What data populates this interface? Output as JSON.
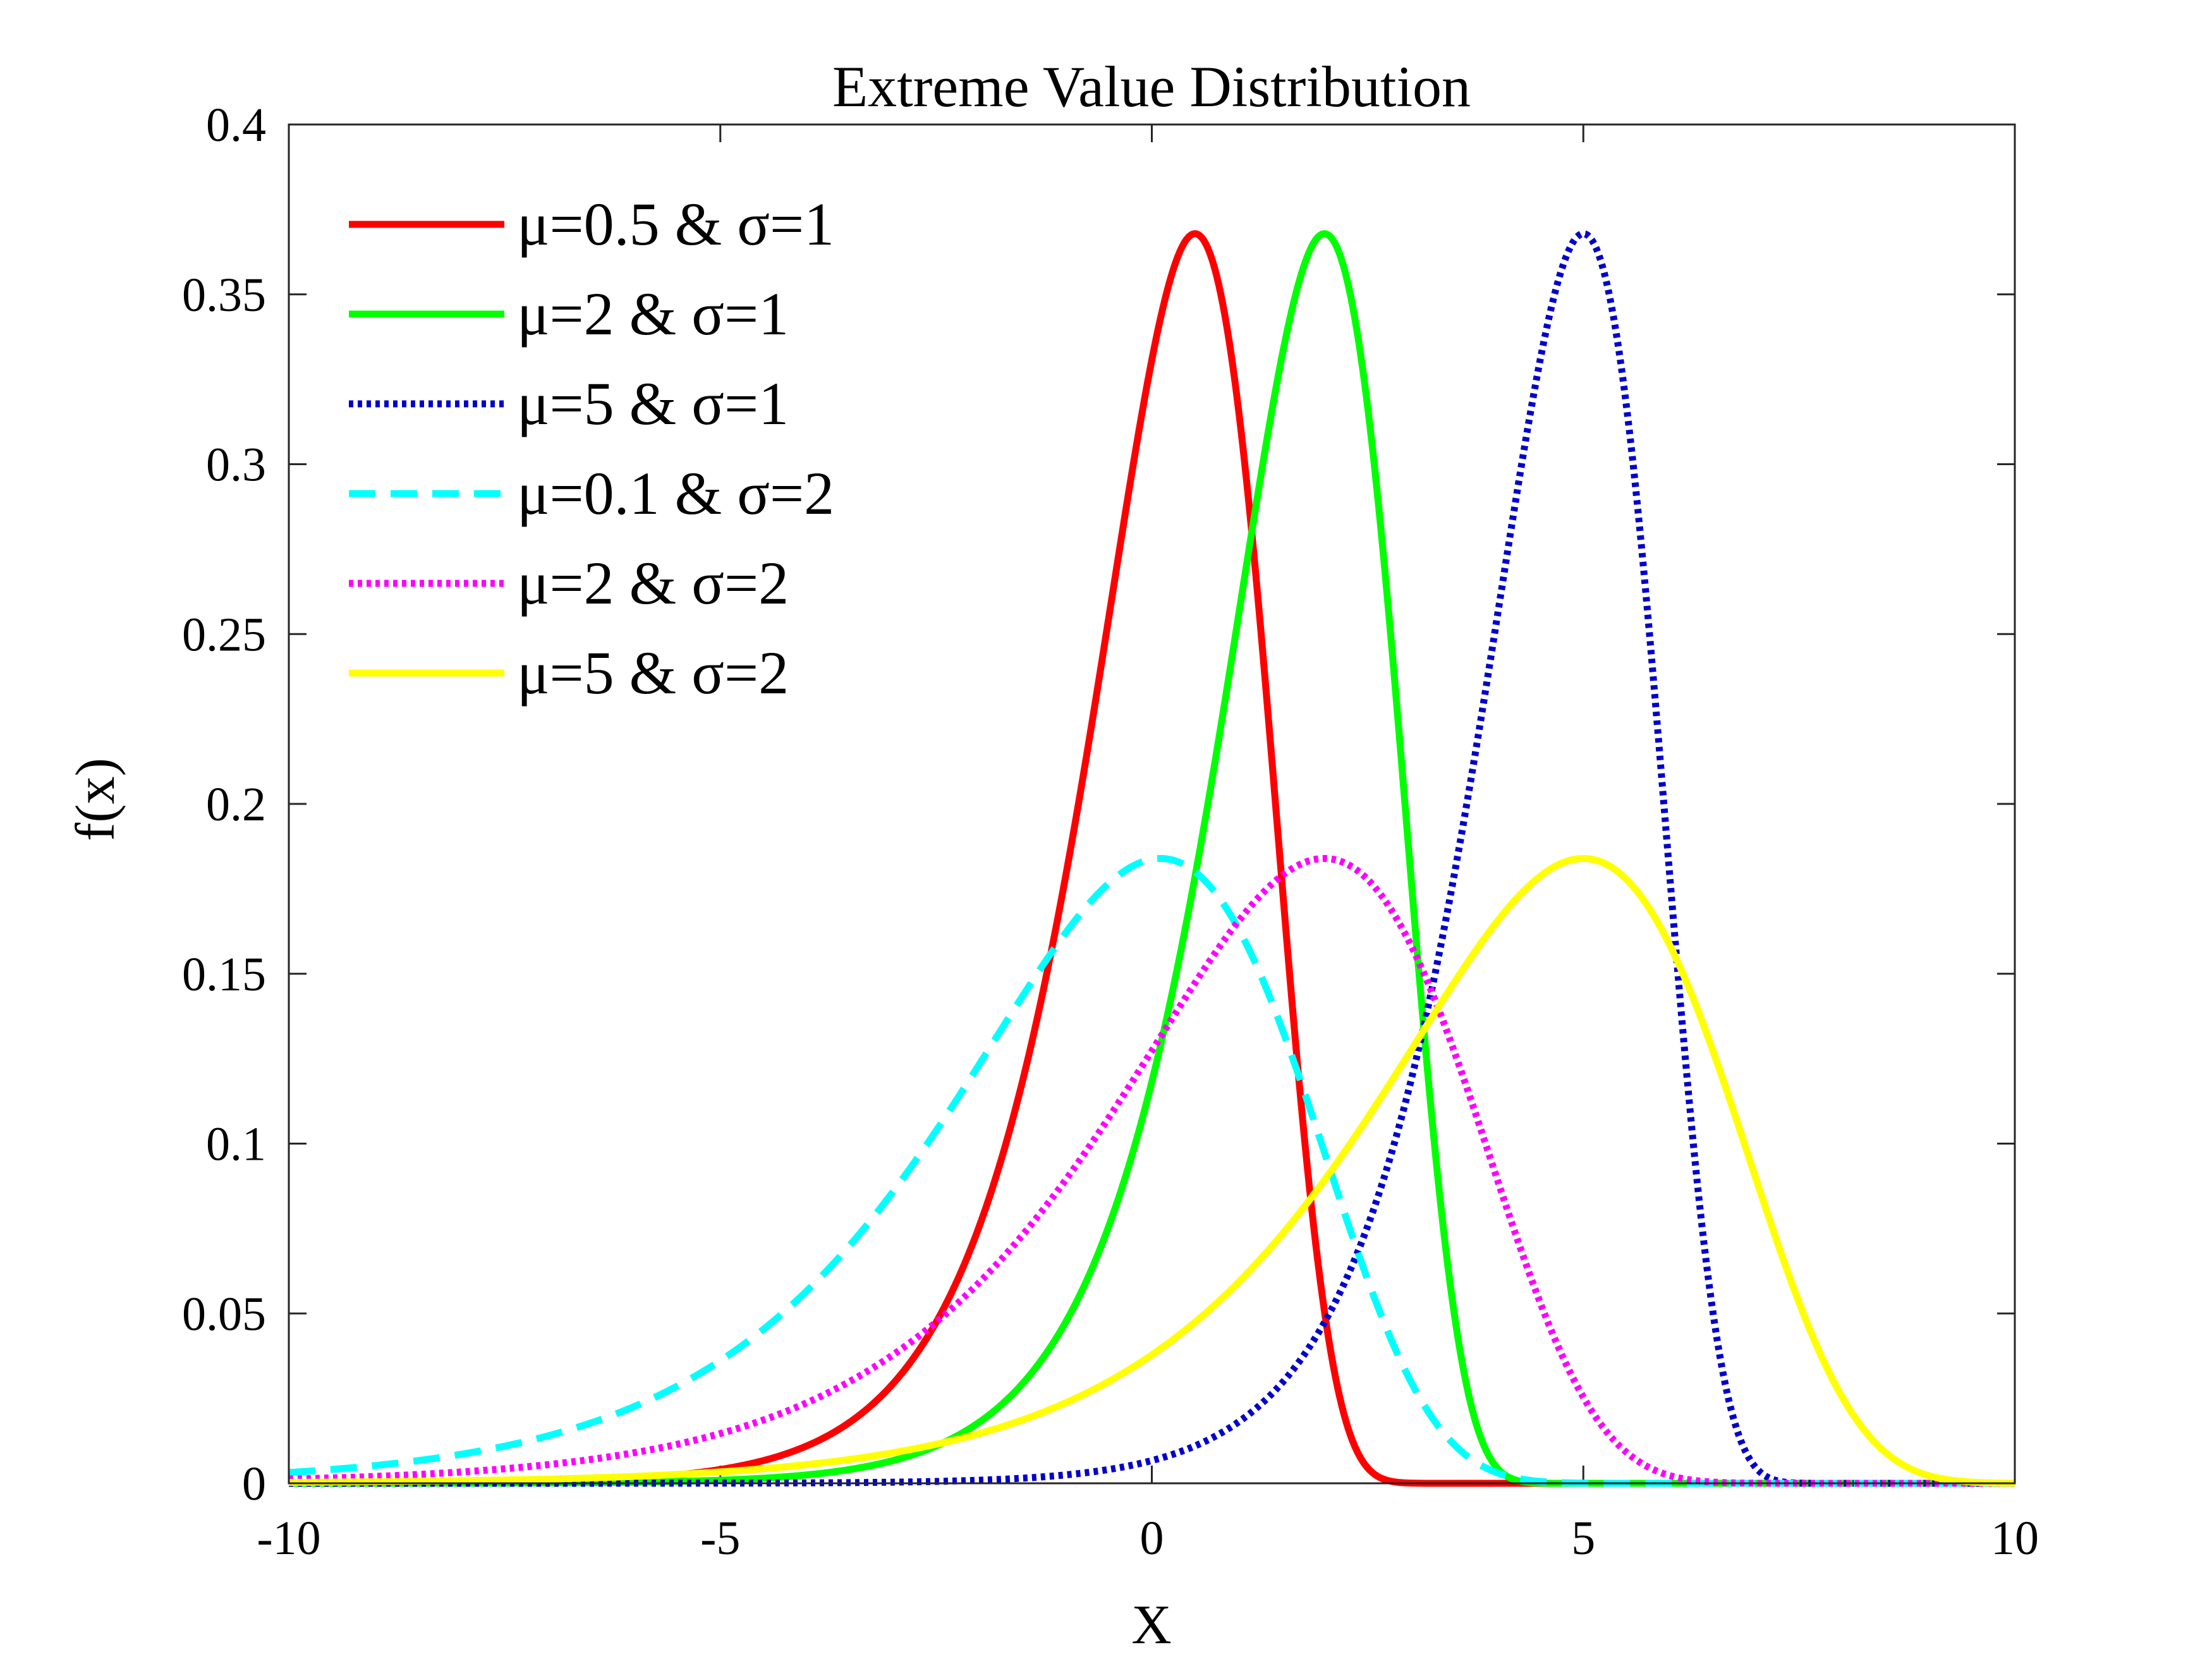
{
  "chart_data": {
    "type": "line",
    "title": "Extreme Value Distribution",
    "xlabel": "X",
    "ylabel": "f(x)",
    "xlim": [
      -10,
      10
    ],
    "ylim": [
      0,
      0.4
    ],
    "xticks": [
      -10,
      -5,
      0,
      5,
      10
    ],
    "xtick_labels": [
      "-10",
      "-5",
      "0",
      "5",
      "10"
    ],
    "yticks": [
      0,
      0.05,
      0.1,
      0.15,
      0.2,
      0.25,
      0.3,
      0.35,
      0.4
    ],
    "ytick_labels": [
      "0",
      "0.05",
      "0.1",
      "0.15",
      "0.2",
      "0.25",
      "0.3",
      "0.35",
      "0.4"
    ],
    "grid": false,
    "legend_position": "top-left",
    "distribution": "type I extreme value (minimum), f(x) = (1/σ)·exp((x−μ)/σ)·exp(−exp((x−μ)/σ))",
    "series": [
      {
        "name": "μ=0.5 & σ=1",
        "mu": 0.5,
        "sigma": 1,
        "color": "#ff0000",
        "style": "solid"
      },
      {
        "name": "μ=2 & σ=1",
        "mu": 2,
        "sigma": 1,
        "color": "#00ff00",
        "style": "solid"
      },
      {
        "name": "μ=5 & σ=1",
        "mu": 5,
        "sigma": 1,
        "color": "#0000cc",
        "style": "dotted"
      },
      {
        "name": "μ=0.1 & σ=2",
        "mu": 0.1,
        "sigma": 2,
        "color": "#00ffff",
        "style": "dashed"
      },
      {
        "name": "μ=2 & σ=2",
        "mu": 2,
        "sigma": 2,
        "color": "#ff00ff",
        "style": "dotted"
      },
      {
        "name": "μ=5 & σ=2",
        "mu": 5,
        "sigma": 2,
        "color": "#ffff00",
        "style": "solid"
      }
    ]
  }
}
